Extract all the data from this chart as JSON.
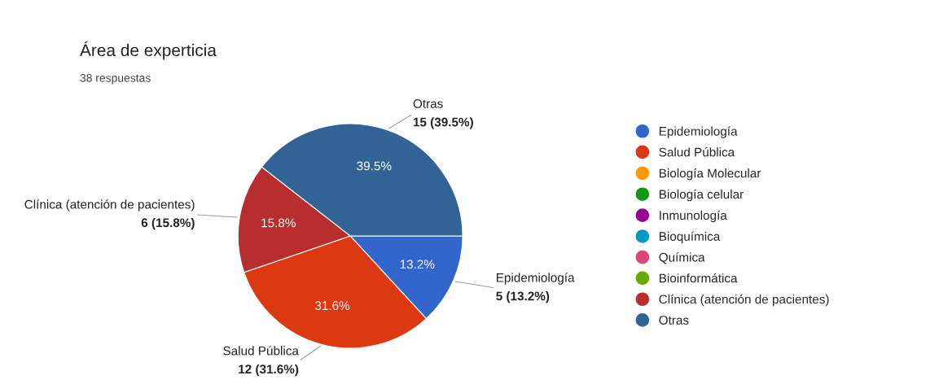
{
  "chart_data": {
    "type": "pie",
    "title": "Área de experticia",
    "subtitle": "38 respuestas",
    "categories": [
      "Epidemiología",
      "Salud Pública",
      "Biología Molecular",
      "Biología celular",
      "Inmunología",
      "Bioquímica",
      "Química",
      "Bioinformática",
      "Clínica (atención de pacientes)",
      "Otras"
    ],
    "values": [
      13.2,
      31.6,
      0,
      0,
      0,
      0,
      0,
      0,
      15.8,
      39.5
    ],
    "colors": [
      "#3366cc",
      "#dc3912",
      "#ff9900",
      "#109618",
      "#990099",
      "#0099c6",
      "#dd4477",
      "#66aa00",
      "#b82e2e",
      "#316395"
    ],
    "value_labels": [
      "13.2%",
      "31.6%",
      null,
      null,
      null,
      null,
      null,
      null,
      "15.8%",
      "39.5%"
    ],
    "annotations": [
      {
        "text": "5 (13.2%)",
        "x": "Epidemiología"
      },
      {
        "text": "12 (31.6%)",
        "x": "Salud Pública"
      },
      {
        "text": "6 (15.8%)",
        "x": "Clínica (atención de pacientes)"
      },
      {
        "text": "15 (39.5%)",
        "x": "Otras"
      }
    ],
    "legend": "right"
  }
}
